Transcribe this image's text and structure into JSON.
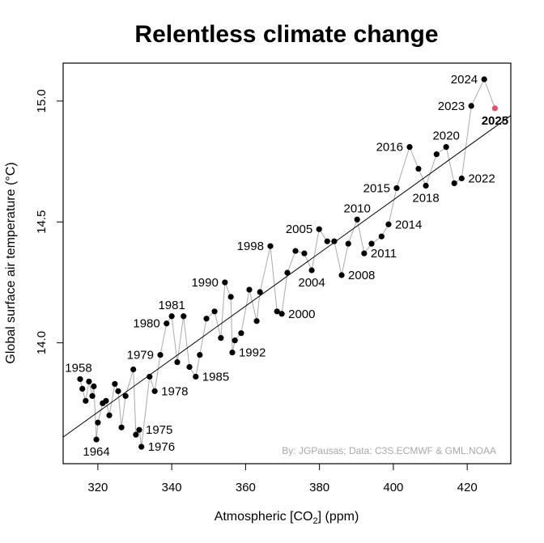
{
  "chart_data": {
    "type": "scatter",
    "title": "Relentless climate change",
    "xlabel": "Atmospheric [CO",
    "xlabel_subscript": "2",
    "xlabel_suffix": "] (ppm)",
    "ylabel": "Global surface air temperature (°C)",
    "xlim": [
      310.6,
      431.8
    ],
    "ylim": [
      13.5,
      15.157
    ],
    "xticks": [
      320,
      340,
      360,
      380,
      400,
      420
    ],
    "yticks": [
      14.0,
      14.5,
      15.0
    ],
    "ytick_labels": [
      "14.0",
      "14.5",
      "15.0"
    ],
    "grid": false,
    "legend": "none",
    "credit": "By: JGPausas; Data: C3S.ECMWF & GML.NOAA",
    "colors": {
      "point": "#000000",
      "path": "#aaaaaa",
      "trend": "#000000",
      "highlight": "#DF536B"
    },
    "trend_line": {
      "x": [
        310.6,
        431.8
      ],
      "y": [
        13.61,
        14.94
      ]
    },
    "highlight_year": 2025,
    "points": [
      {
        "year": 1958,
        "co2": 315.2,
        "temp": 13.85,
        "label": "1958",
        "label_pos": "above-left"
      },
      {
        "year": 1959,
        "co2": 315.8,
        "temp": 13.81
      },
      {
        "year": 1960,
        "co2": 316.7,
        "temp": 13.76
      },
      {
        "year": 1961,
        "co2": 317.6,
        "temp": 13.84
      },
      {
        "year": 1962,
        "co2": 318.5,
        "temp": 13.78
      },
      {
        "year": 1963,
        "co2": 318.9,
        "temp": 13.82
      },
      {
        "year": 1964,
        "co2": 319.6,
        "temp": 13.6,
        "label": "1964",
        "label_pos": "below"
      },
      {
        "year": 1965,
        "co2": 320.0,
        "temp": 13.67
      },
      {
        "year": 1966,
        "co2": 321.3,
        "temp": 13.75
      },
      {
        "year": 1967,
        "co2": 322.2,
        "temp": 13.76
      },
      {
        "year": 1968,
        "co2": 323.1,
        "temp": 13.7
      },
      {
        "year": 1969,
        "co2": 324.6,
        "temp": 13.83
      },
      {
        "year": 1970,
        "co2": 325.5,
        "temp": 13.8
      },
      {
        "year": 1971,
        "co2": 326.4,
        "temp": 13.65
      },
      {
        "year": 1972,
        "co2": 327.5,
        "temp": 13.78
      },
      {
        "year": 1973,
        "co2": 329.6,
        "temp": 13.89
      },
      {
        "year": 1974,
        "co2": 330.3,
        "temp": 13.62
      },
      {
        "year": 1975,
        "co2": 331.2,
        "temp": 13.64,
        "label": "1975",
        "label_pos": "right"
      },
      {
        "year": 1976,
        "co2": 331.8,
        "temp": 13.57,
        "label": "1976",
        "label_pos": "right"
      },
      {
        "year": 1977,
        "co2": 334.0,
        "temp": 13.86
      },
      {
        "year": 1978,
        "co2": 335.4,
        "temp": 13.8,
        "label": "1978",
        "label_pos": "right"
      },
      {
        "year": 1979,
        "co2": 336.9,
        "temp": 13.95,
        "label": "1979",
        "label_pos": "left"
      },
      {
        "year": 1980,
        "co2": 338.6,
        "temp": 14.08,
        "label": "1980",
        "label_pos": "left"
      },
      {
        "year": 1981,
        "co2": 340.0,
        "temp": 14.11,
        "label": "1981",
        "label_pos": "above"
      },
      {
        "year": 1982,
        "co2": 341.5,
        "temp": 13.92
      },
      {
        "year": 1983,
        "co2": 343.2,
        "temp": 14.11
      },
      {
        "year": 1984,
        "co2": 344.8,
        "temp": 13.9
      },
      {
        "year": 1985,
        "co2": 346.5,
        "temp": 13.86,
        "label": "1985",
        "label_pos": "right"
      },
      {
        "year": 1986,
        "co2": 347.6,
        "temp": 13.95
      },
      {
        "year": 1987,
        "co2": 349.4,
        "temp": 14.1
      },
      {
        "year": 1988,
        "co2": 351.6,
        "temp": 14.13
      },
      {
        "year": 1989,
        "co2": 353.3,
        "temp": 14.02
      },
      {
        "year": 1990,
        "co2": 354.4,
        "temp": 14.25,
        "label": "1990",
        "label_pos": "left"
      },
      {
        "year": 1991,
        "co2": 356.0,
        "temp": 14.19
      },
      {
        "year": 1992,
        "co2": 356.4,
        "temp": 13.96,
        "label": "1992",
        "label_pos": "right"
      },
      {
        "year": 1993,
        "co2": 357.1,
        "temp": 14.01
      },
      {
        "year": 1994,
        "co2": 358.8,
        "temp": 14.04
      },
      {
        "year": 1995,
        "co2": 361.0,
        "temp": 14.22
      },
      {
        "year": 1996,
        "co2": 363.0,
        "temp": 14.09
      },
      {
        "year": 1997,
        "co2": 363.9,
        "temp": 14.21
      },
      {
        "year": 1998,
        "co2": 366.7,
        "temp": 14.4,
        "label": "1998",
        "label_pos": "left"
      },
      {
        "year": 1999,
        "co2": 368.5,
        "temp": 14.13
      },
      {
        "year": 2000,
        "co2": 369.8,
        "temp": 14.12,
        "label": "2000",
        "label_pos": "right"
      },
      {
        "year": 2001,
        "co2": 371.3,
        "temp": 14.29
      },
      {
        "year": 2002,
        "co2": 373.5,
        "temp": 14.38
      },
      {
        "year": 2003,
        "co2": 375.9,
        "temp": 14.37
      },
      {
        "year": 2004,
        "co2": 377.9,
        "temp": 14.3,
        "label": "2004",
        "label_pos": "below"
      },
      {
        "year": 2005,
        "co2": 379.9,
        "temp": 14.47,
        "label": "2005",
        "label_pos": "left"
      },
      {
        "year": 2006,
        "co2": 382.1,
        "temp": 14.42
      },
      {
        "year": 2007,
        "co2": 384.0,
        "temp": 14.42
      },
      {
        "year": 2008,
        "co2": 386.0,
        "temp": 14.28,
        "label": "2008",
        "label_pos": "right"
      },
      {
        "year": 2009,
        "co2": 387.8,
        "temp": 14.41
      },
      {
        "year": 2010,
        "co2": 390.2,
        "temp": 14.51,
        "label": "2010",
        "label_pos": "above"
      },
      {
        "year": 2011,
        "co2": 392.1,
        "temp": 14.37,
        "label": "2011",
        "label_pos": "right"
      },
      {
        "year": 2012,
        "co2": 394.1,
        "temp": 14.41
      },
      {
        "year": 2013,
        "co2": 396.8,
        "temp": 14.44
      },
      {
        "year": 2014,
        "co2": 398.7,
        "temp": 14.49,
        "label": "2014",
        "label_pos": "right"
      },
      {
        "year": 2015,
        "co2": 400.9,
        "temp": 14.64,
        "label": "2015",
        "label_pos": "left"
      },
      {
        "year": 2016,
        "co2": 404.4,
        "temp": 14.81,
        "label": "2016",
        "label_pos": "left"
      },
      {
        "year": 2017,
        "co2": 406.8,
        "temp": 14.72
      },
      {
        "year": 2018,
        "co2": 408.8,
        "temp": 14.65,
        "label": "2018",
        "label_pos": "below"
      },
      {
        "year": 2019,
        "co2": 411.7,
        "temp": 14.78
      },
      {
        "year": 2020,
        "co2": 414.3,
        "temp": 14.81,
        "label": "2020",
        "label_pos": "above"
      },
      {
        "year": 2021,
        "co2": 416.5,
        "temp": 14.66
      },
      {
        "year": 2022,
        "co2": 418.5,
        "temp": 14.68,
        "label": "2022",
        "label_pos": "right"
      },
      {
        "year": 2023,
        "co2": 421.1,
        "temp": 14.98,
        "label": "2023",
        "label_pos": "left"
      },
      {
        "year": 2024,
        "co2": 424.6,
        "temp": 15.09,
        "label": "2024",
        "label_pos": "left"
      },
      {
        "year": 2025,
        "co2": 427.5,
        "temp": 14.97,
        "label": "2025",
        "label_pos": "below"
      }
    ]
  }
}
